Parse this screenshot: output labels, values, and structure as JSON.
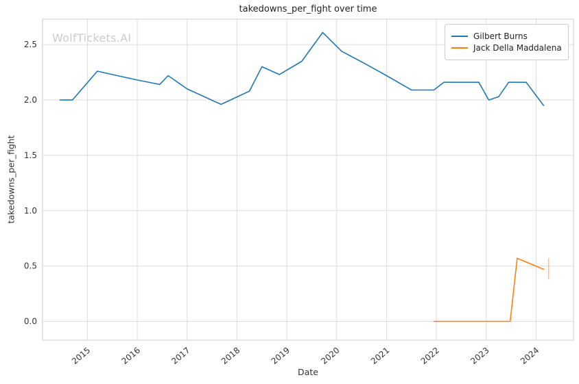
{
  "watermark": "WolfTickets.AI",
  "chart_data": {
    "type": "line",
    "title": "takedowns_per_fight over time",
    "xlabel": "Date",
    "ylabel": "takedowns_per_fight",
    "grid": true,
    "legend_position": "upper right",
    "x_range": [
      2014.1,
      2024.75
    ],
    "y_range": [
      -0.17,
      2.73
    ],
    "x_tick_labels": [
      "2015",
      "2016",
      "2017",
      "2018",
      "2019",
      "2020",
      "2021",
      "2022",
      "2023",
      "2024"
    ],
    "y_tick_labels": [
      "0.0",
      "0.5",
      "1.0",
      "1.5",
      "2.0",
      "2.5"
    ],
    "colors": {
      "grid": "#dddddd",
      "spine": "#cccccc"
    },
    "series": [
      {
        "name": "Gilbert Burns",
        "color": "#1f77b4",
        "x": [
          2014.45,
          2014.7,
          2015.2,
          2015.6,
          2016.0,
          2016.45,
          2016.62,
          2017.0,
          2017.68,
          2018.25,
          2018.5,
          2018.85,
          2019.3,
          2019.72,
          2020.1,
          2020.6,
          2021.0,
          2021.5,
          2021.95,
          2022.15,
          2022.85,
          2023.05,
          2023.25,
          2023.45,
          2023.8,
          2024.15
        ],
        "y": [
          2.0,
          2.0,
          2.26,
          2.22,
          2.18,
          2.14,
          2.22,
          2.1,
          1.96,
          2.08,
          2.3,
          2.23,
          2.35,
          2.61,
          2.44,
          2.32,
          2.22,
          2.09,
          2.09,
          2.16,
          2.16,
          2.0,
          2.03,
          2.16,
          2.16,
          1.95
        ]
      },
      {
        "name": "Jack Della Maddalena",
        "color": "#ff7f0e",
        "x": [
          2021.95,
          2022.5,
          2023.0,
          2023.3,
          2023.48,
          2023.62,
          2024.15
        ],
        "y": [
          0.0,
          0.0,
          0.0,
          0.0,
          0.0,
          0.57,
          0.47
        ],
        "errorbar": {
          "x": 2024.25,
          "y_low": 0.38,
          "y_high": 0.57,
          "color": "#ffbb78"
        }
      }
    ]
  }
}
